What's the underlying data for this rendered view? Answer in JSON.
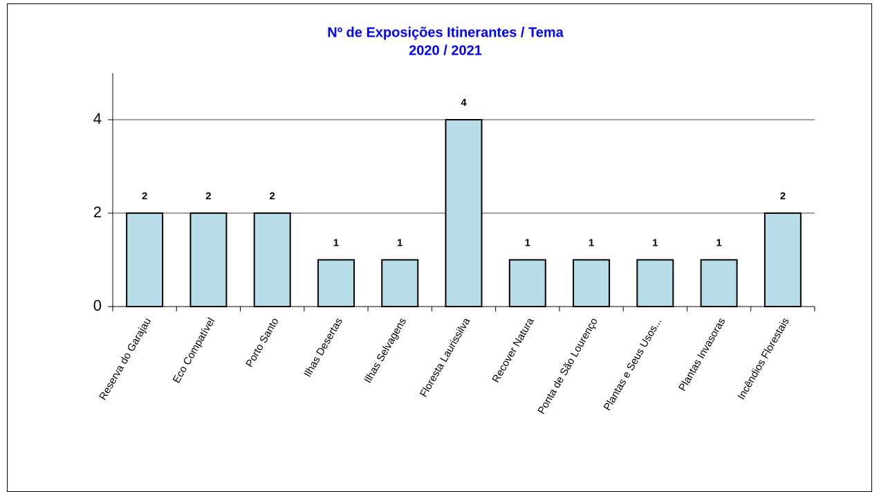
{
  "chart_data": {
    "type": "bar",
    "title": "Nº de Exposições Itinerantes / Tema",
    "subtitle": "2020 / 2021",
    "categories": [
      "Reserva do Garajau",
      "Eco Compatível",
      "Porto Santo",
      "Ilhas Desertas",
      "Ilhas Selvagens",
      "Floresta Laurissilva",
      "Recover Natura",
      "Ponta de São Lourenço",
      "Plantas e Seus Usos...",
      "Plantas Invasoras",
      "Incêndios Florestais"
    ],
    "values": [
      2,
      2,
      2,
      1,
      1,
      4,
      1,
      1,
      1,
      1,
      2
    ],
    "color": "#b7dde8",
    "ylim": [
      0,
      5
    ],
    "yticks": [
      0,
      2,
      4
    ],
    "grid": true
  }
}
